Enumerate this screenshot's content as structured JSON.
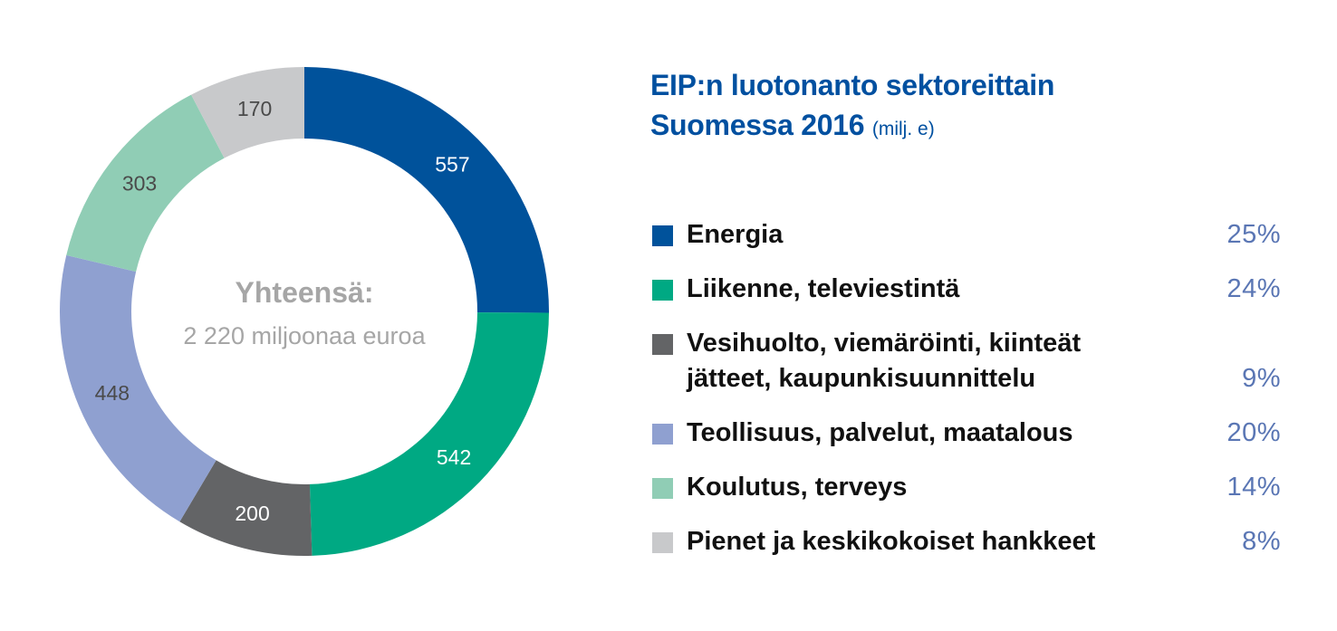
{
  "chart_data": {
    "type": "pie",
    "title": "EIP:n luotonanto sektoreittain Suomessa 2016",
    "unit": "(milj. e)",
    "center": {
      "title": "Yhteensä:",
      "subtitle": "2 220 miljoonaa euroa"
    },
    "slices": [
      {
        "label": "Energia",
        "value": 557,
        "value_label": "557",
        "percent": "25%",
        "color": "#00529b",
        "label_color": "#ffffff"
      },
      {
        "label": "Liikenne, televiestintä",
        "value": 542,
        "value_label": "542",
        "percent": "24%",
        "color": "#00a983",
        "label_color": "#ffffff"
      },
      {
        "label": "Vesihuolto, viemäröinti, kiinteät jätteet, kaupunkisuunnittelu",
        "value": 200,
        "value_label": "200",
        "percent": "9%",
        "color": "#636466",
        "label_color": "#ffffff"
      },
      {
        "label": "Teollisuus, palvelut, maatalous",
        "value": 448,
        "value_label": "448",
        "percent": "20%",
        "color": "#8fa0d0",
        "label_color": "#4a4a4a"
      },
      {
        "label": "Koulutus, terveys",
        "value": 303,
        "value_label": "303",
        "percent": "14%",
        "color": "#90cdb5",
        "label_color": "#4a4a4a"
      },
      {
        "label": "Pienet ja keskikokoiset hankkeet",
        "value": 170,
        "value_label": "170",
        "percent": "8%",
        "color": "#c8c9cb",
        "label_color": "#4a4a4a"
      }
    ],
    "legend_position": "right"
  }
}
